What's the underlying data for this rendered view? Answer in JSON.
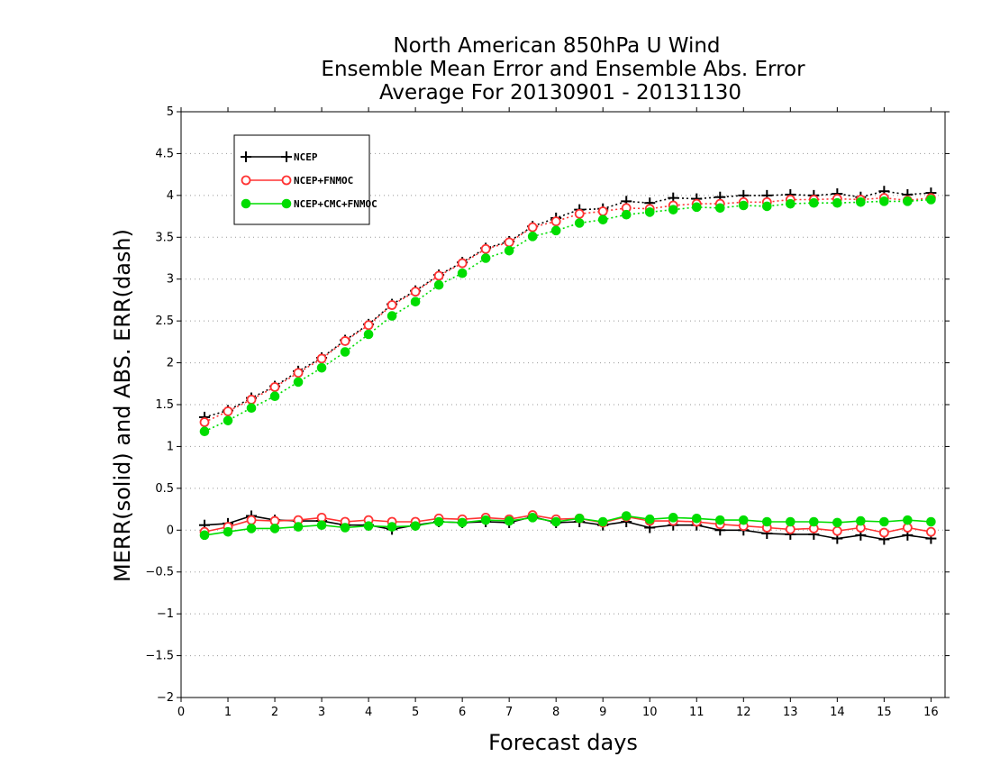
{
  "chart_data": {
    "type": "line",
    "title_lines": [
      "North American 850hPa U Wind",
      "Ensemble Mean Error and Ensemble Abs. Error",
      "Average For 20130901 - 20131130"
    ],
    "xlabel": "Forecast days",
    "ylabel": "MERR(solid) and ABS. ERR(dash)",
    "xlim": [
      0,
      16.3
    ],
    "ylim": [
      -2,
      5
    ],
    "x_ticks": [
      0,
      1,
      2,
      3,
      4,
      5,
      6,
      7,
      8,
      9,
      10,
      11,
      12,
      13,
      14,
      15,
      16
    ],
    "y_ticks": [
      -2,
      -1.5,
      -1,
      -0.5,
      0,
      0.5,
      1,
      1.5,
      2,
      2.5,
      3,
      3.5,
      4,
      4.5,
      5
    ],
    "grid": "horizontal-dotted",
    "legend_position": "top-left",
    "x": [
      0.5,
      1,
      1.5,
      2,
      2.5,
      3,
      3.5,
      4,
      4.5,
      5,
      5.5,
      6,
      6.5,
      7,
      7.5,
      8,
      8.5,
      9,
      9.5,
      10,
      10.5,
      11,
      11.5,
      12,
      12.5,
      13,
      13.5,
      14,
      14.5,
      15,
      15.5,
      16
    ],
    "series": [
      {
        "name": "NCEP",
        "color": "#000000",
        "marker": "plus",
        "merr": [
          0.06,
          0.08,
          0.17,
          0.12,
          0.11,
          0.11,
          0.06,
          0.06,
          0.01,
          0.06,
          0.1,
          0.09,
          0.1,
          0.09,
          0.16,
          0.09,
          0.1,
          0.06,
          0.1,
          0.03,
          0.06,
          0.06,
          0.0,
          0.0,
          -0.04,
          -0.05,
          -0.05,
          -0.1,
          -0.06,
          -0.11,
          -0.06,
          -0.1
        ],
        "abs_err": [
          1.35,
          1.43,
          1.58,
          1.72,
          1.9,
          2.06,
          2.27,
          2.46,
          2.7,
          2.86,
          3.05,
          3.2,
          3.37,
          3.45,
          3.63,
          3.73,
          3.83,
          3.84,
          3.93,
          3.91,
          3.97,
          3.96,
          3.98,
          4.0,
          4.0,
          4.01,
          4.0,
          4.02,
          3.98,
          4.05,
          4.01,
          4.03
        ]
      },
      {
        "name": "NCEP+FNMOC",
        "color": "#ff3333",
        "marker": "open-circle",
        "merr": [
          -0.02,
          0.04,
          0.12,
          0.11,
          0.12,
          0.15,
          0.1,
          0.12,
          0.1,
          0.1,
          0.14,
          0.13,
          0.15,
          0.13,
          0.18,
          0.13,
          0.14,
          0.09,
          0.16,
          0.11,
          0.11,
          0.1,
          0.07,
          0.05,
          0.03,
          0.01,
          0.02,
          -0.01,
          0.03,
          -0.03,
          0.03,
          -0.02
        ],
        "abs_err": [
          1.29,
          1.42,
          1.56,
          1.71,
          1.88,
          2.05,
          2.26,
          2.45,
          2.69,
          2.85,
          3.04,
          3.19,
          3.36,
          3.44,
          3.62,
          3.69,
          3.78,
          3.81,
          3.85,
          3.84,
          3.88,
          3.9,
          3.9,
          3.92,
          3.92,
          3.95,
          3.95,
          3.96,
          3.95,
          3.97,
          3.94,
          3.97
        ]
      },
      {
        "name": "NCEP+CMC+FNMOC",
        "color": "#00dd00",
        "marker": "filled-circle",
        "merr": [
          -0.06,
          -0.02,
          0.02,
          0.02,
          0.04,
          0.06,
          0.03,
          0.05,
          0.04,
          0.05,
          0.1,
          0.09,
          0.12,
          0.11,
          0.15,
          0.1,
          0.14,
          0.1,
          0.17,
          0.13,
          0.15,
          0.14,
          0.12,
          0.12,
          0.1,
          0.1,
          0.1,
          0.09,
          0.11,
          0.1,
          0.12,
          0.1
        ],
        "abs_err": [
          1.18,
          1.31,
          1.46,
          1.6,
          1.77,
          1.94,
          2.13,
          2.34,
          2.56,
          2.73,
          2.93,
          3.07,
          3.25,
          3.34,
          3.51,
          3.58,
          3.67,
          3.71,
          3.77,
          3.8,
          3.83,
          3.86,
          3.85,
          3.88,
          3.87,
          3.9,
          3.91,
          3.91,
          3.92,
          3.93,
          3.93,
          3.95
        ]
      }
    ]
  }
}
